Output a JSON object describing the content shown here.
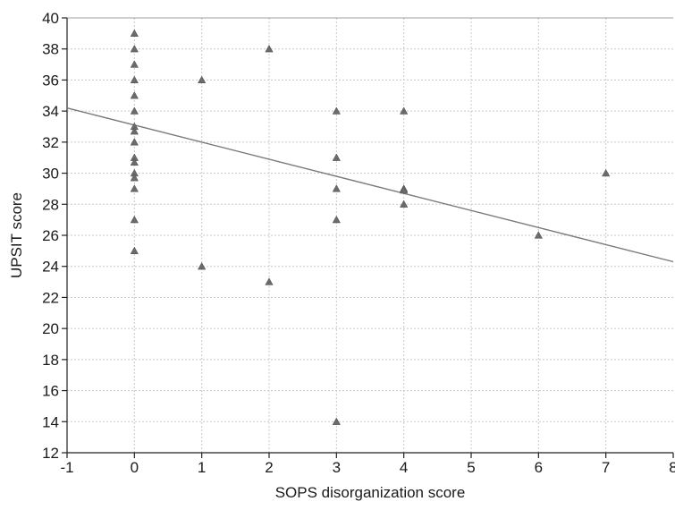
{
  "chart_data": {
    "type": "scatter",
    "title": "",
    "xlabel": "SOPS disorganization score",
    "ylabel": "UPSIT score",
    "xlim": [
      -1,
      8
    ],
    "ylim": [
      12,
      40
    ],
    "xticks": [
      -1,
      0,
      1,
      2,
      3,
      4,
      5,
      6,
      7,
      8
    ],
    "yticks": [
      12,
      14,
      16,
      18,
      20,
      22,
      24,
      26,
      28,
      30,
      32,
      34,
      36,
      38,
      40
    ],
    "grid": true,
    "marker": "triangle",
    "colors": {
      "point": "#6b6b6b",
      "line": "#7a7a7a",
      "grid": "#c8c8c8"
    },
    "points": [
      {
        "x": 0,
        "y": 39
      },
      {
        "x": 0,
        "y": 38
      },
      {
        "x": 0,
        "y": 37
      },
      {
        "x": 0,
        "y": 36
      },
      {
        "x": 0,
        "y": 35
      },
      {
        "x": 0,
        "y": 34
      },
      {
        "x": 0,
        "y": 33
      },
      {
        "x": 0,
        "y": 32.7
      },
      {
        "x": 0,
        "y": 32
      },
      {
        "x": 0,
        "y": 31
      },
      {
        "x": 0,
        "y": 30.7
      },
      {
        "x": 0,
        "y": 30
      },
      {
        "x": 0,
        "y": 29.7
      },
      {
        "x": 0,
        "y": 29
      },
      {
        "x": 0,
        "y": 27
      },
      {
        "x": 0,
        "y": 25
      },
      {
        "x": 1,
        "y": 36
      },
      {
        "x": 1,
        "y": 24
      },
      {
        "x": 2,
        "y": 38
      },
      {
        "x": 2,
        "y": 23
      },
      {
        "x": 3,
        "y": 34
      },
      {
        "x": 3,
        "y": 31
      },
      {
        "x": 3,
        "y": 29
      },
      {
        "x": 3,
        "y": 27
      },
      {
        "x": 3,
        "y": 14
      },
      {
        "x": 4,
        "y": 34
      },
      {
        "x": 4,
        "y": 29
      },
      {
        "x": 4,
        "y": 28.9
      },
      {
        "x": 4,
        "y": 28
      },
      {
        "x": 6,
        "y": 26
      },
      {
        "x": 7,
        "y": 30
      }
    ],
    "fit_line": {
      "x": [
        -1,
        8
      ],
      "y": [
        34.2,
        24.3
      ]
    }
  }
}
